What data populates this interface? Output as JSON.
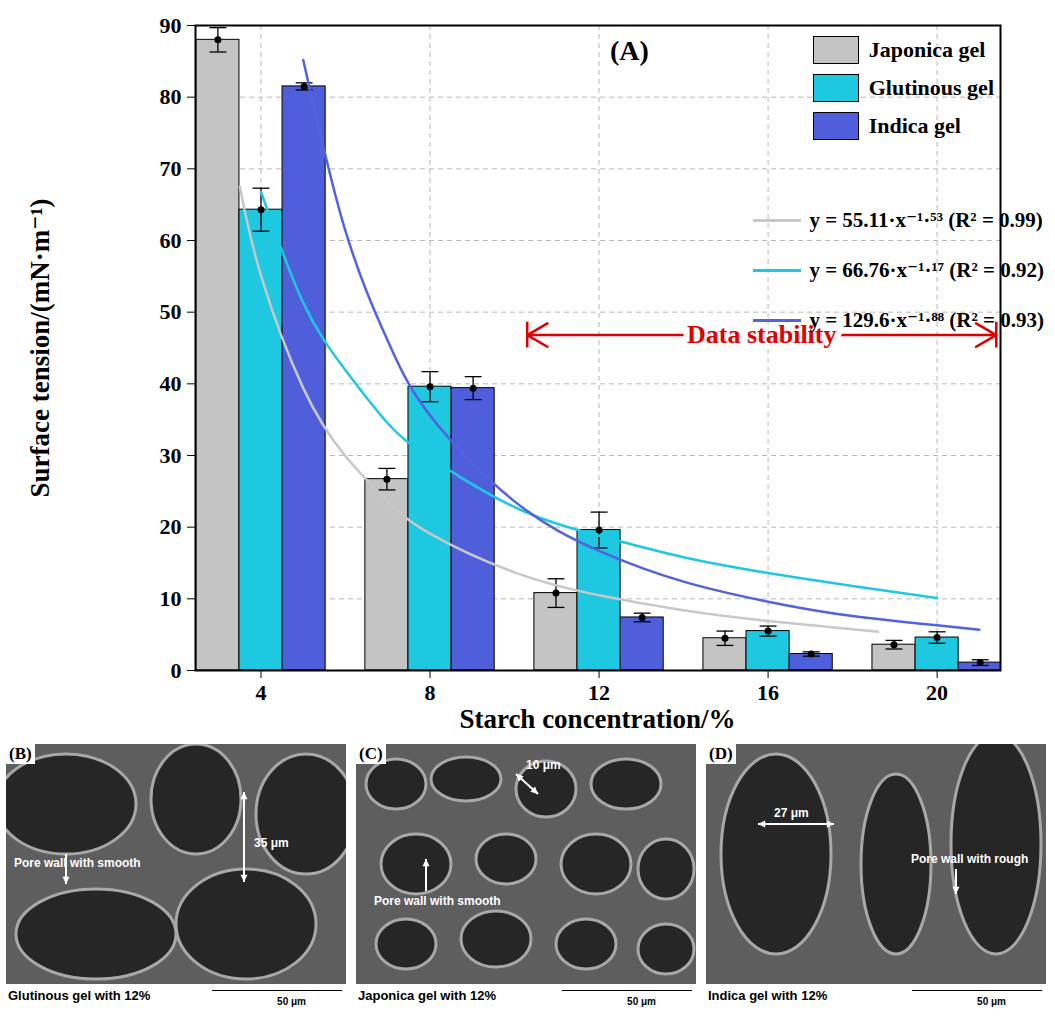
{
  "chart_data": {
    "type": "bar",
    "panel_label": "(A)",
    "x_label": "Starch concentration/%",
    "y_label": "Surface tension/(mN·m⁻¹)",
    "x": [
      4,
      8,
      12,
      16,
      20
    ],
    "xlim": [
      2.45,
      21.5
    ],
    "xticks": [
      4,
      8,
      12,
      16,
      20
    ],
    "ylim": [
      0,
      90
    ],
    "yticks": [
      0,
      10,
      20,
      30,
      40,
      50,
      60,
      70,
      80,
      90
    ],
    "grid": true,
    "legend": "top-right",
    "series": [
      {
        "name": "Japonica gel",
        "type": "bar",
        "color": "#c4c4c4",
        "marker": "circle",
        "values": [
          88.0,
          26.7,
          10.8,
          4.5,
          3.6
        ],
        "errors": [
          1.7,
          1.5,
          2.0,
          1.0,
          0.6
        ]
      },
      {
        "name": "Glutinous gel",
        "type": "bar",
        "color": "#1ec8e0",
        "marker": "circle",
        "values": [
          64.3,
          39.6,
          19.6,
          5.5,
          4.6
        ],
        "errors": [
          3.0,
          2.1,
          2.5,
          0.7,
          0.8
        ]
      },
      {
        "name": "Indica gel",
        "type": "bar",
        "color": "#4f5fdc",
        "marker": "circle",
        "values": [
          81.5,
          39.4,
          7.4,
          2.3,
          1.1
        ],
        "errors": [
          0.5,
          1.6,
          0.6,
          0.3,
          0.4
        ]
      },
      {
        "name": "y = 55.11·x⁻¹·⁵³ (R² = 0.99)",
        "type": "line",
        "color": "#c8c8c8",
        "x": [
          3.5,
          4,
          5,
          6,
          7,
          8,
          10,
          12,
          14,
          16,
          18.6
        ],
        "values": [
          67.5,
          55.1,
          39.4,
          29.9,
          23.6,
          19.1,
          13.7,
          10.5,
          8.4,
          6.9,
          5.4
        ]
      },
      {
        "name": "y = 66.76·x⁻¹·¹⁷ (R² = 0.92)",
        "type": "line",
        "color": "#1ec8e0",
        "x": [
          4,
          5,
          6,
          7,
          8,
          10,
          12,
          14,
          16,
          18,
          20
        ],
        "values": [
          66.8,
          51.3,
          41.9,
          34.5,
          29.7,
          22.8,
          18.8,
          15.8,
          13.6,
          11.8,
          10.1
        ]
      },
      {
        "name": "y = 129.6·x⁻¹·⁸⁸ (R² = 0.93)",
        "type": "line",
        "color": "#5262e0",
        "x": [
          5,
          6,
          7,
          8,
          10,
          12,
          14,
          16,
          18,
          21
        ],
        "values": [
          85.2,
          61.3,
          46.0,
          35.6,
          23.6,
          16.7,
          12.4,
          9.6,
          7.6,
          5.7
        ]
      }
    ],
    "annotations": [
      {
        "text": "Data stability",
        "x_start": 10.3,
        "x_end": 21.4,
        "y": 46.8,
        "color": "#e00000"
      }
    ]
  },
  "images": [
    {
      "label": "(B)",
      "caption": "Glutinous gel with 12%",
      "scale_bar": "50 μm",
      "notes": [
        "Pore wall with smooth",
        "35 μm"
      ]
    },
    {
      "label": "(C)",
      "caption": "Japonica gel with 12%",
      "scale_bar": "50 μm",
      "notes": [
        "Pore wall with smooth",
        "10 μm"
      ]
    },
    {
      "label": "(D)",
      "caption": "Indica gel with 12%",
      "scale_bar": "50 μm",
      "notes": [
        "27 μm",
        "Pore wall with rough"
      ]
    }
  ]
}
